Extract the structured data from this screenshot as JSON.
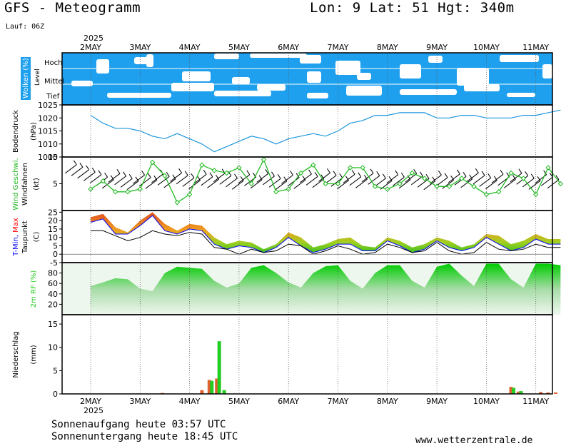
{
  "header": {
    "model_title": "GFS - Meteogramm",
    "location": "Lon: 9 Lat: 51 Hgt: 340m",
    "run": "Lauf: 06Z",
    "year": "2025"
  },
  "footer": {
    "sunrise": "Sonnenaufgang heute 03:57 UTC",
    "sunset": "Sonnenuntergang heute 18:45 UTC",
    "website": "www.wetterzentrale.de"
  },
  "colors": {
    "clouds": "#1ea0ee",
    "pressure": "#1e96dc",
    "wind": "#22bb22",
    "tmin": "#0000ff",
    "tmax": "#ff0000",
    "humidity": "#22cc22",
    "precip_rain": "#22cc22",
    "precip_conv": "#e06030"
  },
  "chart_data": [
    {
      "type": "area",
      "title": "Wolken (%)",
      "ylabel": "Level",
      "categories": [
        "2MAY",
        "3MAY",
        "4MAY",
        "5MAY",
        "6MAY",
        "7MAY",
        "8MAY",
        "9MAY",
        "10MAY",
        "11MAY"
      ],
      "levels": [
        "Hoch",
        "Mittel",
        "Tief"
      ]
    },
    {
      "type": "line",
      "ylabel": "Bodendruck",
      "unit": "(hPa)",
      "yticks": [
        1005,
        1010,
        1015,
        1020,
        1025
      ],
      "ylim": [
        1005,
        1025
      ],
      "xlim": [
        0,
        9.5
      ],
      "x": [
        0,
        0.25,
        0.5,
        0.75,
        1,
        1.25,
        1.5,
        1.75,
        2,
        2.25,
        2.5,
        2.75,
        3,
        3.25,
        3.5,
        3.75,
        4,
        4.25,
        4.5,
        4.75,
        5,
        5.25,
        5.5,
        5.75,
        6,
        6.25,
        6.5,
        6.75,
        7,
        7.25,
        7.5,
        7.75,
        8,
        8.25,
        8.5,
        8.75,
        9,
        9.25,
        9.5
      ],
      "series": [
        {
          "values": [
            1021,
            1018,
            1016,
            1016,
            1015,
            1013,
            1012,
            1014,
            1012,
            1010,
            1007,
            1009,
            1011,
            1013,
            1012,
            1010,
            1012,
            1013,
            1014,
            1013,
            1015,
            1018,
            1019,
            1021,
            1021,
            1022,
            1022,
            1022,
            1020,
            1020,
            1021,
            1021,
            1020,
            1020,
            1020,
            1021,
            1021,
            1022,
            1023
          ]
        }
      ]
    },
    {
      "type": "line",
      "ylabel": "Wind Geschwi.",
      "ylabel2": "Windfahnen",
      "unit": "(kt)",
      "yticks": [
        5,
        10
      ],
      "ylim": [
        0,
        10
      ],
      "xlim": [
        0,
        9.5
      ],
      "x": [
        0,
        0.25,
        0.5,
        0.75,
        1,
        1.25,
        1.5,
        1.75,
        2,
        2.25,
        2.5,
        2.75,
        3,
        3.25,
        3.5,
        3.75,
        4,
        4.25,
        4.5,
        4.75,
        5,
        5.25,
        5.5,
        5.75,
        6,
        6.25,
        6.5,
        6.75,
        7,
        7.25,
        7.5,
        7.75,
        8,
        8.25,
        8.5,
        8.75,
        9,
        9.25,
        9.5
      ],
      "series": [
        {
          "name": "Wind Geschwi.",
          "values": [
            4,
            5.5,
            3.5,
            3.5,
            4,
            9,
            6.5,
            1.5,
            3,
            8.5,
            7.5,
            7,
            8,
            5,
            9.5,
            3.5,
            4,
            7,
            8.5,
            5,
            5,
            8,
            8,
            4.5,
            4,
            5,
            7,
            6,
            4.5,
            4.5,
            6,
            4.5,
            3,
            3.5,
            7,
            6,
            3,
            8,
            5
          ]
        }
      ]
    },
    {
      "type": "area",
      "ylabel": "T-Min, Max",
      "ylabel2": "Taupunkt",
      "unit": "(C)",
      "yticks": [
        -5,
        0,
        5,
        10,
        15,
        20,
        25
      ],
      "ylim": [
        -5,
        26
      ],
      "xlim": [
        0,
        9.5
      ],
      "x": [
        0,
        0.25,
        0.5,
        0.75,
        1,
        1.25,
        1.5,
        1.75,
        2,
        2.25,
        2.5,
        2.75,
        3,
        3.25,
        3.5,
        3.75,
        4,
        4.25,
        4.5,
        4.75,
        5,
        5.25,
        5.5,
        5.75,
        6,
        6.25,
        6.5,
        6.75,
        7,
        7.25,
        7.5,
        7.75,
        8,
        8.25,
        8.5,
        8.75,
        9,
        9.25,
        9.5
      ],
      "series": [
        {
          "name": "T-Max",
          "values": [
            22,
            24,
            16,
            13,
            20,
            25,
            18,
            14,
            18,
            17,
            10,
            6,
            8,
            7,
            3,
            6,
            13,
            10,
            4,
            6,
            9,
            10,
            5,
            4,
            10,
            8,
            4,
            6,
            10,
            8,
            4,
            6,
            12,
            11,
            6,
            8,
            12,
            9,
            9
          ]
        },
        {
          "name": "T-Min",
          "values": [
            19,
            21,
            12,
            12,
            17,
            23,
            14,
            12,
            15,
            14,
            6,
            3,
            5,
            4,
            1,
            4,
            10,
            5,
            1,
            3,
            6,
            6,
            2,
            2,
            8,
            5,
            1,
            3,
            8,
            4,
            2,
            4,
            10,
            6,
            2,
            4,
            9,
            6,
            6
          ]
        },
        {
          "name": "Taupunkt",
          "values": [
            14,
            14,
            11,
            8,
            10,
            14,
            12,
            11,
            13,
            12,
            4,
            3,
            0,
            3,
            1,
            2,
            6,
            5,
            0,
            2,
            5,
            3,
            0,
            1,
            6,
            4,
            1,
            2,
            7,
            2,
            0,
            1,
            7,
            3,
            2,
            3,
            6,
            4,
            4
          ]
        }
      ]
    },
    {
      "type": "area",
      "ylabel": "2m RF (%)",
      "yticks": [
        20,
        40,
        60,
        80
      ],
      "ylim": [
        0,
        100
      ],
      "xlim": [
        0,
        9.5
      ],
      "x": [
        0,
        0.25,
        0.5,
        0.75,
        1,
        1.25,
        1.5,
        1.75,
        2,
        2.25,
        2.5,
        2.75,
        3,
        3.25,
        3.5,
        3.75,
        4,
        4.25,
        4.5,
        4.75,
        5,
        5.25,
        5.5,
        5.75,
        6,
        6.25,
        6.5,
        6.75,
        7,
        7.25,
        7.5,
        7.75,
        8,
        8.25,
        8.5,
        8.75,
        9,
        9.25,
        9.5
      ],
      "series": [
        {
          "name": "2m RF",
          "values": [
            55,
            62,
            70,
            68,
            50,
            45,
            80,
            92,
            90,
            88,
            65,
            52,
            60,
            90,
            95,
            80,
            62,
            52,
            80,
            93,
            95,
            65,
            50,
            80,
            95,
            95,
            65,
            52,
            92,
            98,
            75,
            55,
            98,
            98,
            68,
            52,
            98,
            98,
            95
          ]
        }
      ]
    },
    {
      "type": "bar",
      "ylabel": "Niederschlag",
      "unit": "(mm)",
      "yticks": [
        0,
        5,
        10,
        15
      ],
      "ylim": [
        0,
        17
      ],
      "xlim": [
        0,
        9.5
      ],
      "series": [
        {
          "x": [
            1.45,
            2.25,
            2.4,
            2.55,
            8.5,
            8.65,
            9.1,
            9.25,
            9.4
          ],
          "values": [
            0.2,
            0.8,
            3.0,
            3.3,
            1.5,
            0.5,
            0.4,
            0.3,
            0.3
          ]
        },
        {
          "x": [
            2.45,
            2.6,
            2.7,
            8.55,
            8.7
          ],
          "values": [
            2.8,
            11.3,
            0.8,
            1.3,
            0.6
          ]
        }
      ]
    }
  ]
}
